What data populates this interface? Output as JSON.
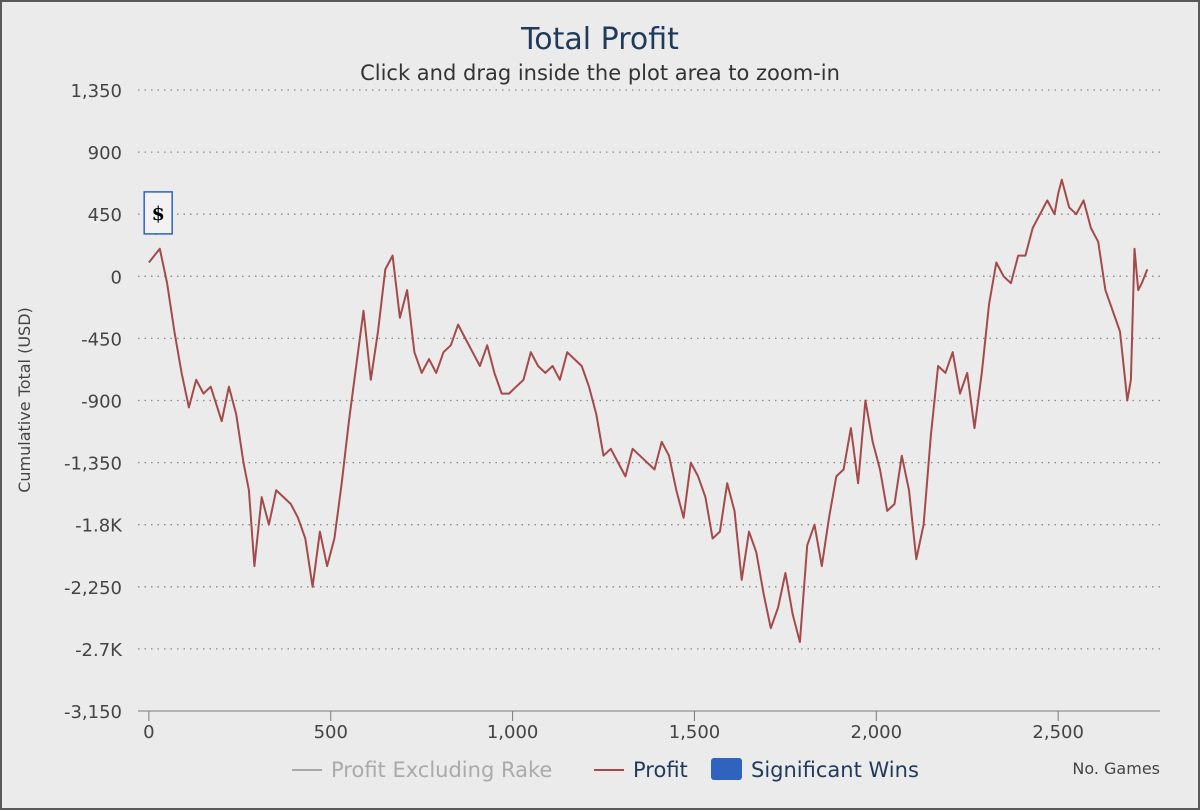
{
  "chart_data": {
    "type": "line",
    "title": "Total Profit",
    "subtitle": "Click and drag inside the plot area to zoom-in",
    "ylabel": "Cumulative Total (USD)",
    "xlabel": "No. Games",
    "ylim": [
      -3150,
      1350
    ],
    "xlim": [
      -30,
      2780
    ],
    "y_ticks": [
      1350,
      900,
      450,
      0,
      -450,
      -900,
      -1350,
      -1800,
      -2250,
      -2700,
      -3150
    ],
    "y_tick_labels": [
      "1,350",
      "900",
      "450",
      "0",
      "-450",
      "-900",
      "-1,350",
      "-1.8K",
      "-2,250",
      "-2.7K",
      "-3,150"
    ],
    "x_ticks": [
      0,
      500,
      1000,
      1500,
      2000,
      2500
    ],
    "x_tick_labels": [
      "0",
      "500",
      "1,000",
      "1,500",
      "2,000",
      "2,500"
    ],
    "grid": "horizontal dotted",
    "legend_position": "bottom-center",
    "series": [
      {
        "name": "Profit Excluding Rake",
        "color": "#aaaaaa",
        "values": []
      },
      {
        "name": "Profit",
        "color": "#a44a4a",
        "x": [
          0,
          30,
          50,
          70,
          90,
          110,
          130,
          150,
          170,
          200,
          220,
          240,
          260,
          275,
          290,
          310,
          330,
          350,
          370,
          390,
          410,
          430,
          450,
          470,
          490,
          510,
          530,
          550,
          570,
          590,
          610,
          630,
          650,
          670,
          690,
          710,
          730,
          750,
          770,
          790,
          810,
          830,
          850,
          870,
          890,
          910,
          930,
          950,
          970,
          990,
          1010,
          1030,
          1050,
          1070,
          1090,
          1110,
          1130,
          1150,
          1170,
          1190,
          1210,
          1230,
          1250,
          1270,
          1290,
          1310,
          1330,
          1350,
          1370,
          1390,
          1410,
          1430,
          1450,
          1470,
          1490,
          1510,
          1530,
          1550,
          1570,
          1590,
          1610,
          1630,
          1650,
          1670,
          1690,
          1710,
          1730,
          1750,
          1770,
          1790,
          1810,
          1830,
          1850,
          1870,
          1890,
          1910,
          1930,
          1950,
          1970,
          1990,
          2010,
          2030,
          2050,
          2070,
          2090,
          2110,
          2130,
          2150,
          2170,
          2190,
          2210,
          2230,
          2250,
          2270,
          2290,
          2310,
          2330,
          2350,
          2370,
          2390,
          2410,
          2430,
          2450,
          2470,
          2490,
          2500,
          2510,
          2530,
          2550,
          2570,
          2590,
          2610,
          2630,
          2650,
          2670,
          2690,
          2700,
          2710,
          2720,
          2730,
          2745
        ],
        "y": [
          100,
          200,
          -50,
          -400,
          -700,
          -950,
          -750,
          -850,
          -800,
          -1050,
          -800,
          -1000,
          -1350,
          -1550,
          -2100,
          -1600,
          -1800,
          -1550,
          -1600,
          -1650,
          -1750,
          -1900,
          -2250,
          -1850,
          -2100,
          -1900,
          -1500,
          -1050,
          -650,
          -250,
          -750,
          -400,
          50,
          150,
          -300,
          -100,
          -550,
          -700,
          -600,
          -700,
          -550,
          -500,
          -350,
          -450,
          -550,
          -650,
          -500,
          -700,
          -850,
          -850,
          -800,
          -750,
          -550,
          -650,
          -700,
          -650,
          -750,
          -550,
          -600,
          -650,
          -800,
          -1000,
          -1300,
          -1250,
          -1350,
          -1450,
          -1250,
          -1300,
          -1350,
          -1400,
          -1200,
          -1300,
          -1550,
          -1750,
          -1350,
          -1450,
          -1600,
          -1900,
          -1850,
          -1500,
          -1700,
          -2200,
          -1850,
          -2000,
          -2300,
          -2550,
          -2400,
          -2150,
          -2450,
          -2650,
          -1950,
          -1800,
          -2100,
          -1750,
          -1450,
          -1400,
          -1100,
          -1500,
          -900,
          -1200,
          -1400,
          -1700,
          -1650,
          -1300,
          -1550,
          -2050,
          -1800,
          -1150,
          -650,
          -700,
          -550,
          -850,
          -700,
          -1100,
          -700,
          -200,
          100,
          0,
          -50,
          150,
          150,
          350,
          450,
          550,
          450,
          600,
          700,
          500,
          450,
          550,
          350,
          250,
          -100,
          -250,
          -400,
          -900,
          -750,
          200,
          -100,
          -50,
          50
        ]
      },
      {
        "name": "Significant Wins",
        "color": "#2f63bd",
        "points": [
          {
            "x": 20,
            "y": 300,
            "label": "$"
          }
        ]
      }
    ]
  }
}
